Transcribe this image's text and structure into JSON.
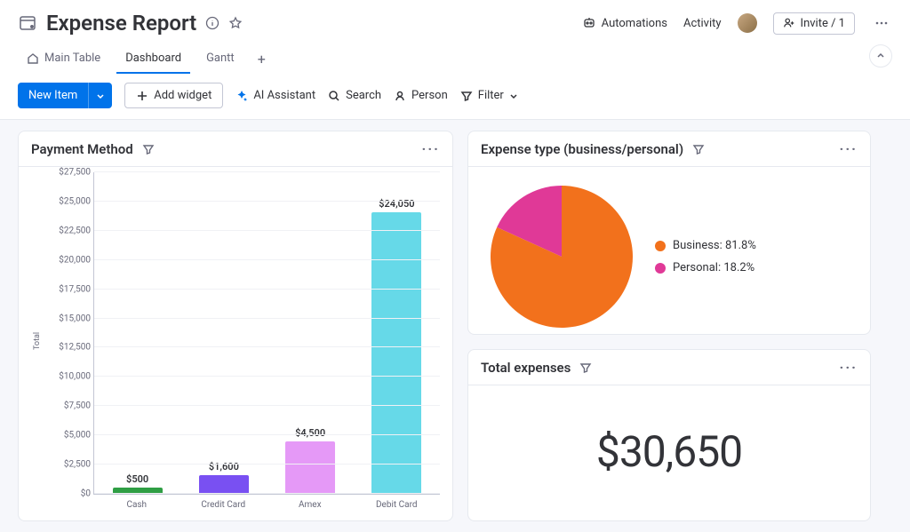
{
  "header": {
    "title": "Expense Report",
    "automations_label": "Automations",
    "activity_label": "Activity",
    "invite_label": "Invite / 1"
  },
  "tabs": {
    "items": [
      {
        "label": "Main Table",
        "active": false
      },
      {
        "label": "Dashboard",
        "active": true
      },
      {
        "label": "Gantt",
        "active": false
      }
    ]
  },
  "toolbar": {
    "new_item": "New Item",
    "add_widget": "Add widget",
    "ai_assistant": "AI Assistant",
    "search": "Search",
    "person": "Person",
    "filter": "Filter"
  },
  "payment_chart": {
    "title": "Payment Method",
    "type": "bar",
    "y_axis_label": "Total",
    "ylim": [
      0,
      27500
    ],
    "ytick_step": 2500,
    "y_ticks": [
      "$0",
      "$2,500",
      "$5,000",
      "$7,500",
      "$10,000",
      "$12,500",
      "$15,000",
      "$17,500",
      "$20,000",
      "$22,500",
      "$25,000",
      "$27,500"
    ],
    "categories": [
      "Cash",
      "Credit Card",
      "Amex",
      "Debit Card"
    ],
    "values": [
      500,
      1600,
      4500,
      24050
    ],
    "value_labels": [
      "$500",
      "$1,600",
      "$4,500",
      "$24,050"
    ],
    "bar_colors": [
      "#2f9e44",
      "#7950f2",
      "#e599f7",
      "#66d9e8"
    ],
    "background_color": "#ffffff",
    "grid_color": "#f0f1f5",
    "axis_color": "#c3c6d4",
    "label_fontsize": 10,
    "value_fontsize": 11
  },
  "expense_type_chart": {
    "title": "Expense type (business/personal)",
    "type": "pie",
    "slices": [
      {
        "label": "Business",
        "pct": 81.8,
        "color": "#f2711c",
        "legend": "Business: 81.8%"
      },
      {
        "label": "Personal",
        "pct": 18.2,
        "color": "#e03997",
        "legend": "Personal: 18.2%"
      }
    ],
    "radius": 80
  },
  "total_card": {
    "title": "Total expenses",
    "value": "$30,650",
    "value_fontsize": 48
  },
  "colors": {
    "primary_blue": "#0073ea",
    "text": "#323338",
    "muted": "#676879",
    "border": "#e6e9ef",
    "page_bg": "#f6f7fb"
  }
}
